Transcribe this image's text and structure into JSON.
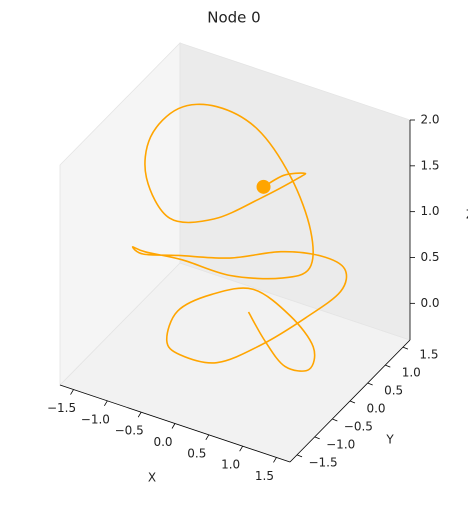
{
  "chart_data": {
    "type": "line3d",
    "title": "Node 0",
    "xlabel": "X",
    "ylabel": "Y",
    "zlabel": "Z",
    "xlim": [
      -1.7,
      1.7
    ],
    "ylim": [
      -1.7,
      1.7
    ],
    "zlim": [
      -0.4,
      2.0
    ],
    "xticks": [
      {
        "value": -1.5,
        "label": "−1.5"
      },
      {
        "value": -1.0,
        "label": "−1.0"
      },
      {
        "value": -0.5,
        "label": "−0.5"
      },
      {
        "value": 0,
        "label": "0.0"
      },
      0.5,
      {
        "value": 1.0,
        "label": "1.0"
      },
      1.5
    ],
    "yticks": [
      {
        "value": -1.5,
        "label": "−1.5"
      },
      {
        "value": -1.0,
        "label": "−1.0"
      },
      {
        "value": -0.5,
        "label": "−0.5"
      },
      {
        "value": 0,
        "label": "0.0"
      },
      0.5,
      {
        "value": 1.0,
        "label": "1.0"
      },
      1.5
    ],
    "zticks": [
      {
        "value": 0,
        "label": "0.0"
      },
      0.5,
      {
        "value": 1.0,
        "label": "1.0"
      },
      1.5,
      {
        "value": 2.0,
        "label": "2.0"
      }
    ],
    "series": [
      {
        "color": "#ffa500",
        "x": [
          0.2,
          0.6,
          1.0,
          1.2,
          1.0,
          0.5,
          -0.1,
          -0.6,
          -0.9,
          -0.8,
          -0.4,
          0.2,
          0.7,
          1.1,
          1.3,
          1.1,
          0.6,
          0.0,
          -0.6,
          -1.1,
          -1.3,
          -1.2,
          -0.8,
          -0.2,
          0.4,
          0.9,
          1.0,
          0.7,
          0.2,
          -0.4,
          -0.9,
          -1.2,
          -1.3,
          -1.1,
          -0.6,
          0.0,
          0.5,
          0.8,
          0.6,
          0.2,
          -0.1
        ],
        "y": [
          0.0,
          -0.3,
          -0.5,
          -0.2,
          0.3,
          0.6,
          0.7,
          0.5,
          0.1,
          -0.4,
          -0.8,
          -0.9,
          -0.6,
          -0.1,
          0.5,
          1.0,
          1.3,
          1.3,
          1.0,
          0.5,
          -0.1,
          -0.6,
          -1.0,
          -1.1,
          -0.9,
          -0.4,
          0.2,
          0.8,
          1.2,
          1.4,
          1.2,
          0.7,
          0.1,
          -0.4,
          -0.7,
          -0.6,
          -0.2,
          0.3,
          0.8,
          1.0,
          1.0
        ],
        "z": [
          0.2,
          0.1,
          0.0,
          -0.1,
          -0.1,
          0.0,
          0.1,
          0.0,
          -0.1,
          -0.2,
          -0.1,
          0.0,
          0.2,
          0.4,
          0.5,
          0.5,
          0.4,
          0.3,
          0.2,
          0.3,
          0.5,
          0.8,
          1.0,
          1.1,
          1.0,
          0.9,
          0.8,
          0.9,
          1.2,
          1.5,
          1.7,
          1.8,
          1.7,
          1.5,
          1.3,
          1.4,
          1.6,
          1.7,
          1.5,
          1.3,
          1.1
        ]
      }
    ],
    "marker": {
      "color": "#ffa500",
      "x": -0.1,
      "y": 1.0,
      "z": 1.1
    }
  }
}
